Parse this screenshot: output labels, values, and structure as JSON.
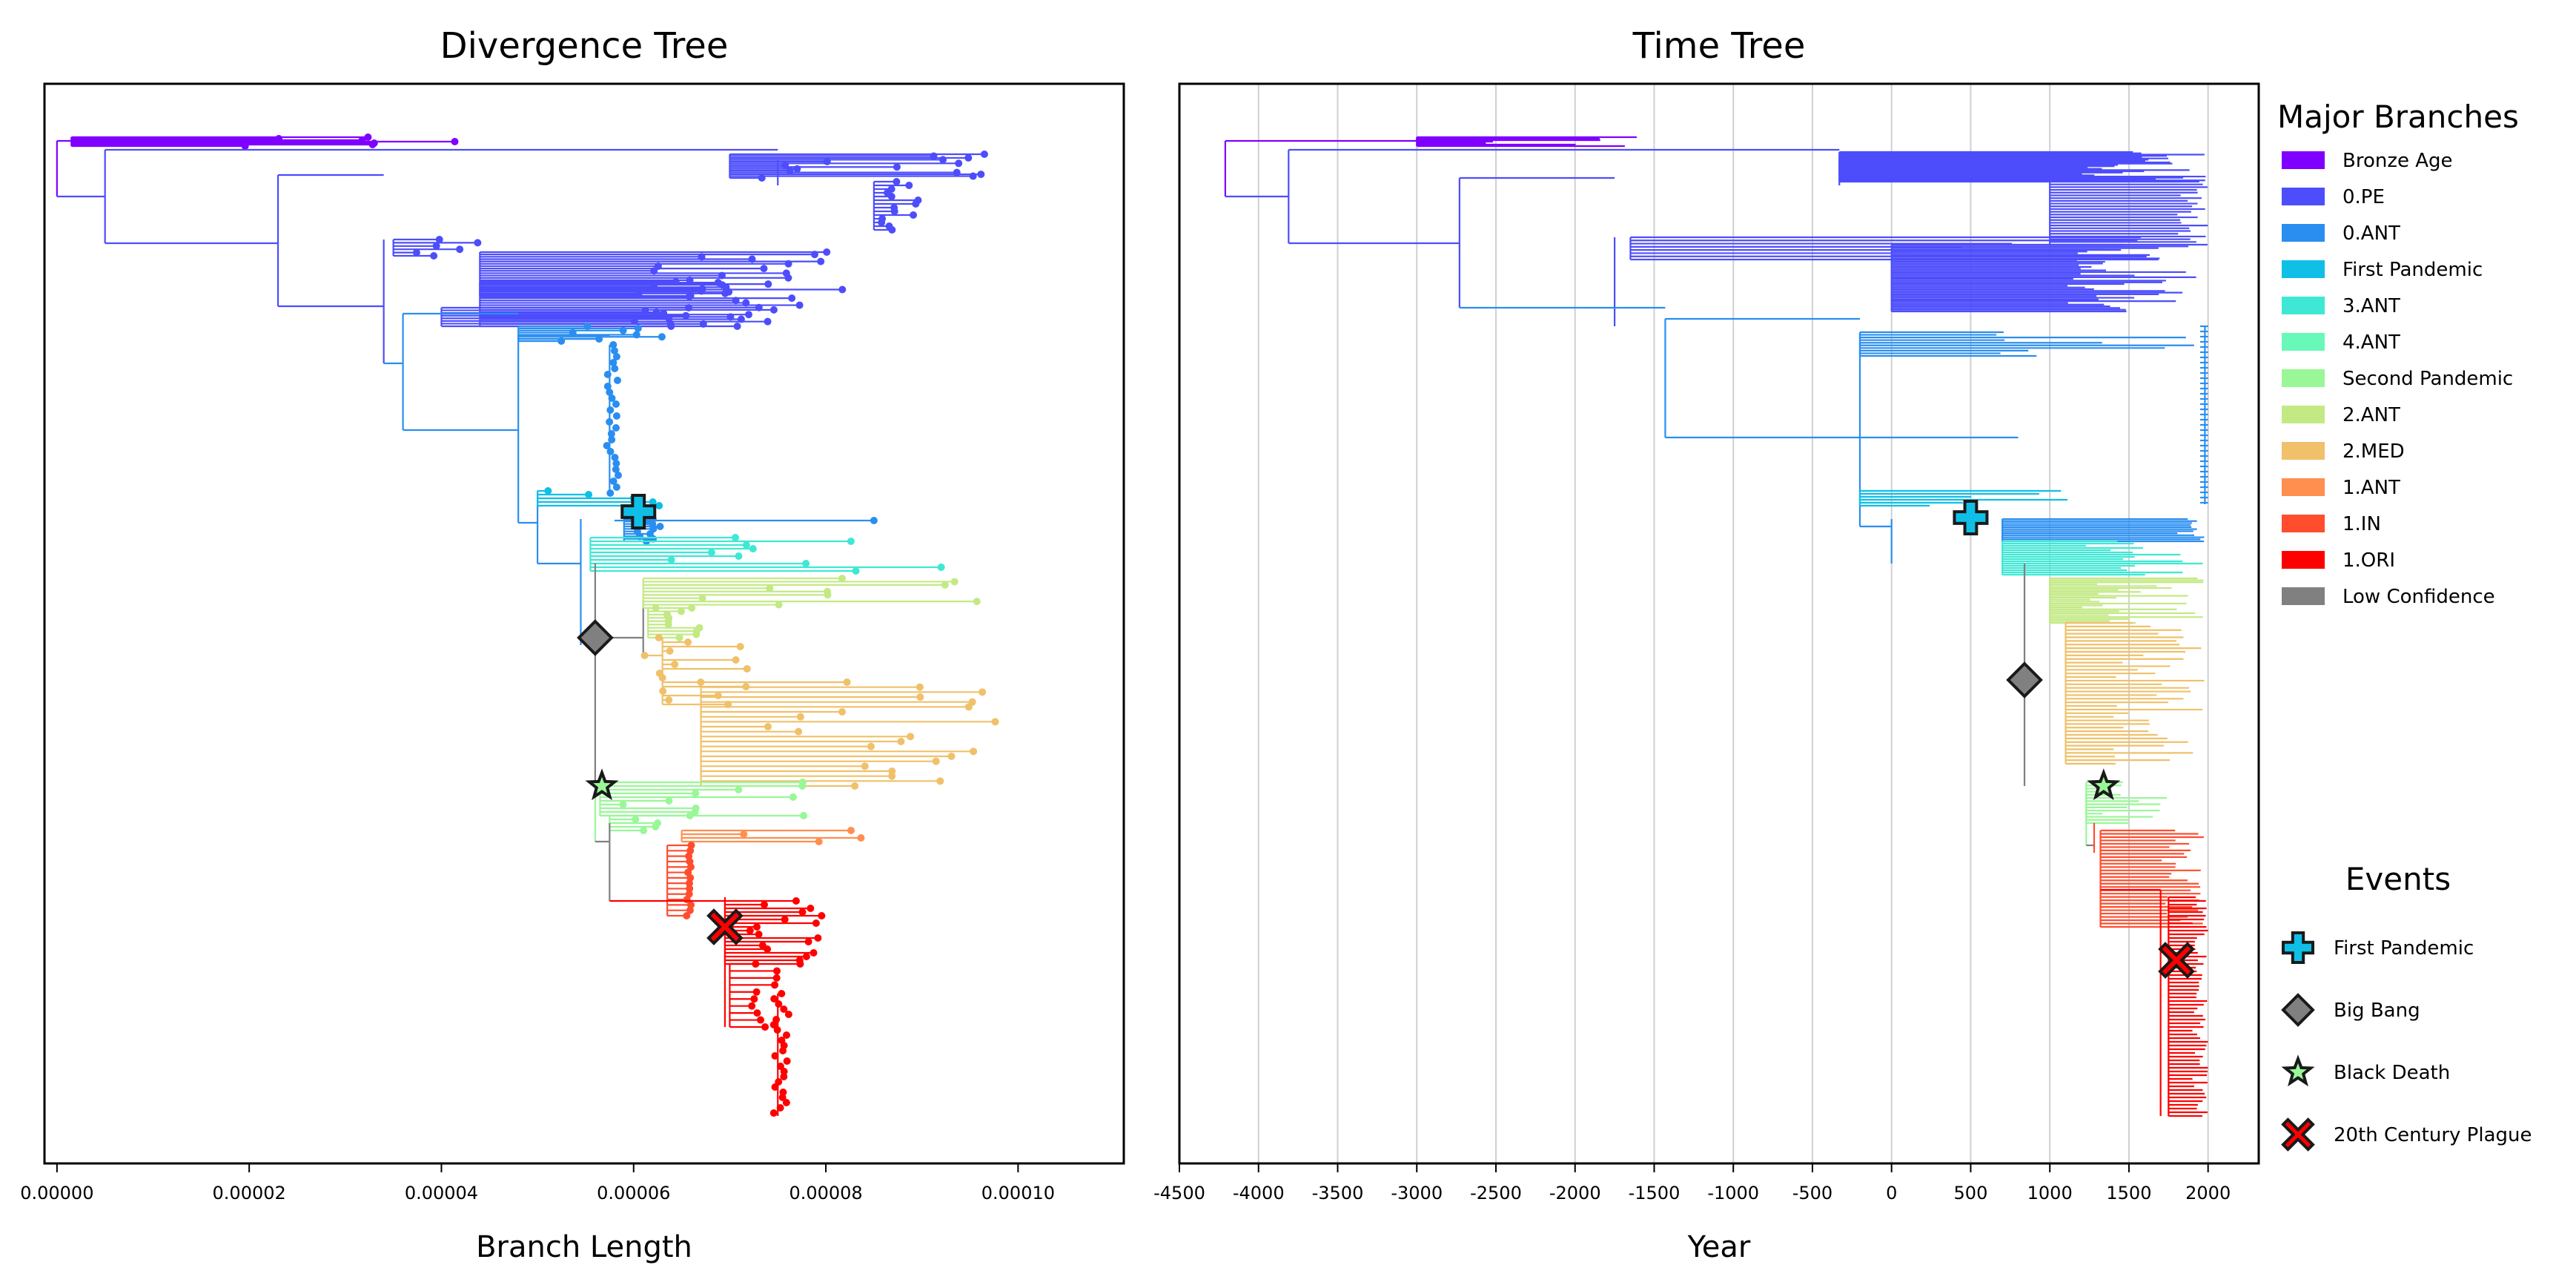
{
  "chart_data": [
    {
      "type": "tree",
      "title": "Divergence Tree",
      "xlabel": "Branch Length",
      "xticks": [
        "0.00000",
        "0.00002",
        "0.00004",
        "0.00006",
        "0.00008",
        "0.00010"
      ],
      "xtick_values": [
        0,
        2e-05,
        4e-05,
        6e-05,
        8e-05,
        0.0001
      ],
      "xlim": [
        -1.3e-06,
        0.000111
      ],
      "grid": false
    },
    {
      "type": "tree",
      "title": "Time Tree",
      "xlabel": "Year",
      "xticks": [
        "-4500",
        "-4000",
        "-3500",
        "-3000",
        "-2500",
        "-2000",
        "-1500",
        "-1000",
        "-500",
        "0",
        "500",
        "1000",
        "1500",
        "2000"
      ],
      "xtick_values": [
        -4500,
        -4000,
        -3500,
        -3000,
        -2500,
        -2000,
        -1500,
        -1000,
        -500,
        0,
        500,
        1000,
        1500,
        2000
      ],
      "xlim": [
        -4500,
        2320
      ],
      "grid": true
    }
  ],
  "legend": {
    "title": "Major Branches",
    "placement": "right",
    "items": [
      {
        "label": "Bronze Age",
        "color": "#8000ff"
      },
      {
        "label": "0.PE",
        "color": "#4d4dfc"
      },
      {
        "label": "0.ANT",
        "color": "#2a8ef0"
      },
      {
        "label": "First Pandemic",
        "color": "#0fbfe6"
      },
      {
        "label": "3.ANT",
        "color": "#3ee8d4"
      },
      {
        "label": "4.ANT",
        "color": "#68f9b8"
      },
      {
        "label": "Second Pandemic",
        "color": "#99f797"
      },
      {
        "label": "2.ANT",
        "color": "#c3e985"
      },
      {
        "label": "2.MED",
        "color": "#f0c06a"
      },
      {
        "label": "1.ANT",
        "color": "#ff8f4f"
      },
      {
        "label": "1.IN",
        "color": "#ff4d2e"
      },
      {
        "label": "1.ORI",
        "color": "#ff0000"
      },
      {
        "label": "Low Confidence",
        "color": "#808080"
      }
    ]
  },
  "events": {
    "title": "Events",
    "items": [
      {
        "label": "First Pandemic",
        "marker": "plus-icon",
        "color": "#0fbfe6",
        "divergence_x": 6.05e-05,
        "time_year": 500
      },
      {
        "label": "Big Bang",
        "marker": "diamond-icon",
        "color": "#808080",
        "divergence_x": 5.6e-05,
        "time_year": 840
      },
      {
        "label": "Black Death",
        "marker": "star-icon",
        "color": "#99f797",
        "divergence_x": 5.67e-05,
        "time_year": 1340
      },
      {
        "label": "20th Century Plague",
        "marker": "x-icon",
        "color": "#ff0000",
        "divergence_x": 6.95e-05,
        "time_year": 1800
      }
    ]
  }
}
